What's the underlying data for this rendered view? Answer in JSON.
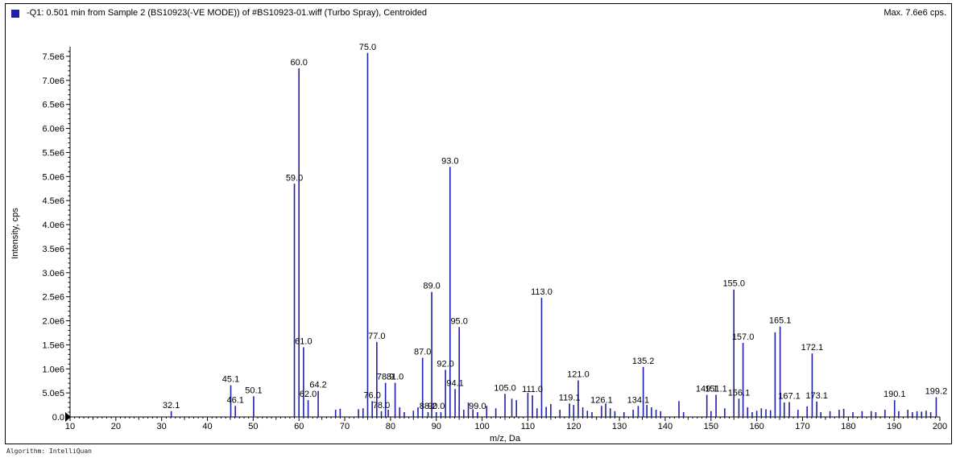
{
  "header": {
    "title": "-Q1: 0.501 min from Sample 2 (BS10923(-VE MODE)) of #BS10923-01.wiff (Turbo Spray), Centroided",
    "max": "Max. 7.6e6 cps."
  },
  "footer": {
    "algorithm": "Algorithm: IntelliQuan"
  },
  "colors": {
    "series": "#1f1fa8",
    "axis": "#000000"
  },
  "chart_data": {
    "type": "bar",
    "xlabel": "m/z, Da",
    "ylabel": "Intensity, cps",
    "xlim": [
      10,
      200
    ],
    "ylim": [
      0,
      7600000
    ],
    "x_ticks": [
      10,
      20,
      30,
      40,
      50,
      60,
      70,
      80,
      90,
      100,
      110,
      120,
      130,
      140,
      150,
      160,
      170,
      180,
      190,
      200
    ],
    "y_ticks": [
      {
        "value": 0,
        "label": "0.0"
      },
      {
        "value": 500000,
        "label": "5.0e5"
      },
      {
        "value": 1000000,
        "label": "1.0e6"
      },
      {
        "value": 1500000,
        "label": "1.5e6"
      },
      {
        "value": 2000000,
        "label": "2.0e6"
      },
      {
        "value": 2500000,
        "label": "2.5e6"
      },
      {
        "value": 3000000,
        "label": "3.0e6"
      },
      {
        "value": 3500000,
        "label": "3.5e6"
      },
      {
        "value": 4000000,
        "label": "4.0e6"
      },
      {
        "value": 4500000,
        "label": "4.5e6"
      },
      {
        "value": 5000000,
        "label": "5.0e6"
      },
      {
        "value": 5500000,
        "label": "5.5e6"
      },
      {
        "value": 6000000,
        "label": "6.0e6"
      },
      {
        "value": 6500000,
        "label": "6.5e6"
      },
      {
        "value": 7000000,
        "label": "7.0e6"
      },
      {
        "value": 7500000,
        "label": "7.5e6"
      }
    ],
    "peaks": [
      {
        "x": 32.1,
        "y": 120000,
        "label": "32.1"
      },
      {
        "x": 45.1,
        "y": 660000,
        "label": "45.1"
      },
      {
        "x": 46.1,
        "y": 230000,
        "label": "46.1"
      },
      {
        "x": 50.1,
        "y": 430000,
        "label": "50.1"
      },
      {
        "x": 59.0,
        "y": 4850000,
        "label": "59.0"
      },
      {
        "x": 60.0,
        "y": 7250000,
        "label": "60.0"
      },
      {
        "x": 61.0,
        "y": 1450000,
        "label": "61.0"
      },
      {
        "x": 62.0,
        "y": 350000,
        "label": "62.0"
      },
      {
        "x": 64.2,
        "y": 540000,
        "label": "64.2"
      },
      {
        "x": 68.0,
        "y": 150000
      },
      {
        "x": 69.0,
        "y": 170000
      },
      {
        "x": 73.0,
        "y": 160000
      },
      {
        "x": 74.0,
        "y": 180000
      },
      {
        "x": 75.0,
        "y": 7570000,
        "label": "75.0"
      },
      {
        "x": 76.0,
        "y": 330000,
        "label": "76.0"
      },
      {
        "x": 77.0,
        "y": 1560000,
        "label": "77.0"
      },
      {
        "x": 78.0,
        "y": 120000,
        "label": "78.0"
      },
      {
        "x": 78.9,
        "y": 710000,
        "label": "78.9"
      },
      {
        "x": 79.5,
        "y": 150000
      },
      {
        "x": 81.0,
        "y": 710000,
        "label": "81.0"
      },
      {
        "x": 82.0,
        "y": 200000
      },
      {
        "x": 83.0,
        "y": 100000
      },
      {
        "x": 85.0,
        "y": 130000
      },
      {
        "x": 86.0,
        "y": 200000
      },
      {
        "x": 87.0,
        "y": 1230000,
        "label": "87.0"
      },
      {
        "x": 88.2,
        "y": 100000,
        "label": "88.2"
      },
      {
        "x": 89.0,
        "y": 2600000,
        "label": "89.0"
      },
      {
        "x": 90.0,
        "y": 100000,
        "label": "90.0"
      },
      {
        "x": 91.0,
        "y": 100000
      },
      {
        "x": 92.0,
        "y": 980000,
        "label": "92.0"
      },
      {
        "x": 93.0,
        "y": 5200000,
        "label": "93.0"
      },
      {
        "x": 94.1,
        "y": 580000,
        "label": "94.1"
      },
      {
        "x": 95.0,
        "y": 1870000,
        "label": "95.0"
      },
      {
        "x": 96.0,
        "y": 150000
      },
      {
        "x": 97.0,
        "y": 300000
      },
      {
        "x": 98.0,
        "y": 160000
      },
      {
        "x": 99.0,
        "y": 100000,
        "label": "99.0"
      },
      {
        "x": 101.0,
        "y": 230000
      },
      {
        "x": 103.0,
        "y": 180000
      },
      {
        "x": 105.0,
        "y": 480000,
        "label": "105.0"
      },
      {
        "x": 106.5,
        "y": 380000
      },
      {
        "x": 107.5,
        "y": 350000
      },
      {
        "x": 110.0,
        "y": 500000
      },
      {
        "x": 111.0,
        "y": 450000,
        "label": "111.0"
      },
      {
        "x": 112.0,
        "y": 180000
      },
      {
        "x": 113.0,
        "y": 2480000,
        "label": "113.0"
      },
      {
        "x": 114.0,
        "y": 210000
      },
      {
        "x": 115.0,
        "y": 270000
      },
      {
        "x": 117.0,
        "y": 150000
      },
      {
        "x": 119.1,
        "y": 280000,
        "label": "119.1"
      },
      {
        "x": 120.0,
        "y": 250000
      },
      {
        "x": 121.0,
        "y": 760000,
        "label": "121.0"
      },
      {
        "x": 122.0,
        "y": 200000
      },
      {
        "x": 123.0,
        "y": 130000
      },
      {
        "x": 124.0,
        "y": 100000
      },
      {
        "x": 126.1,
        "y": 230000,
        "label": "126.1"
      },
      {
        "x": 127.0,
        "y": 280000
      },
      {
        "x": 128.0,
        "y": 180000
      },
      {
        "x": 129.0,
        "y": 120000
      },
      {
        "x": 131.0,
        "y": 100000
      },
      {
        "x": 133.0,
        "y": 150000
      },
      {
        "x": 134.1,
        "y": 230000,
        "label": "134.1"
      },
      {
        "x": 135.2,
        "y": 1040000,
        "label": "135.2"
      },
      {
        "x": 136.0,
        "y": 250000
      },
      {
        "x": 137.0,
        "y": 200000
      },
      {
        "x": 138.0,
        "y": 150000
      },
      {
        "x": 139.0,
        "y": 120000
      },
      {
        "x": 143.0,
        "y": 330000
      },
      {
        "x": 144.0,
        "y": 100000
      },
      {
        "x": 149.1,
        "y": 460000,
        "label": "149.1"
      },
      {
        "x": 150.0,
        "y": 120000
      },
      {
        "x": 151.1,
        "y": 460000,
        "label": "151.1"
      },
      {
        "x": 153.0,
        "y": 180000
      },
      {
        "x": 155.0,
        "y": 2650000,
        "label": "155.0"
      },
      {
        "x": 156.1,
        "y": 380000,
        "label": "156.1"
      },
      {
        "x": 157.0,
        "y": 1540000,
        "label": "157.0"
      },
      {
        "x": 158.0,
        "y": 200000
      },
      {
        "x": 159.0,
        "y": 100000
      },
      {
        "x": 160.0,
        "y": 130000
      },
      {
        "x": 161.0,
        "y": 180000
      },
      {
        "x": 162.0,
        "y": 160000
      },
      {
        "x": 163.0,
        "y": 140000
      },
      {
        "x": 164.0,
        "y": 1760000
      },
      {
        "x": 165.1,
        "y": 1880000,
        "label": "165.1"
      },
      {
        "x": 166.0,
        "y": 300000
      },
      {
        "x": 167.1,
        "y": 310000,
        "label": "167.1"
      },
      {
        "x": 169.0,
        "y": 150000
      },
      {
        "x": 171.0,
        "y": 220000
      },
      {
        "x": 172.1,
        "y": 1320000,
        "label": "172.1"
      },
      {
        "x": 173.1,
        "y": 320000,
        "label": "173.1"
      },
      {
        "x": 174.0,
        "y": 100000
      },
      {
        "x": 176.0,
        "y": 120000
      },
      {
        "x": 178.0,
        "y": 150000
      },
      {
        "x": 179.0,
        "y": 170000
      },
      {
        "x": 181.0,
        "y": 100000
      },
      {
        "x": 183.0,
        "y": 120000
      },
      {
        "x": 185.0,
        "y": 120000
      },
      {
        "x": 186.0,
        "y": 100000
      },
      {
        "x": 188.0,
        "y": 150000
      },
      {
        "x": 190.1,
        "y": 350000,
        "label": "190.1"
      },
      {
        "x": 191.0,
        "y": 120000
      },
      {
        "x": 193.0,
        "y": 150000
      },
      {
        "x": 194.0,
        "y": 100000
      },
      {
        "x": 195.0,
        "y": 120000
      },
      {
        "x": 196.0,
        "y": 110000
      },
      {
        "x": 197.0,
        "y": 130000
      },
      {
        "x": 198.0,
        "y": 100000
      },
      {
        "x": 199.2,
        "y": 410000,
        "label": "199.2"
      }
    ]
  }
}
